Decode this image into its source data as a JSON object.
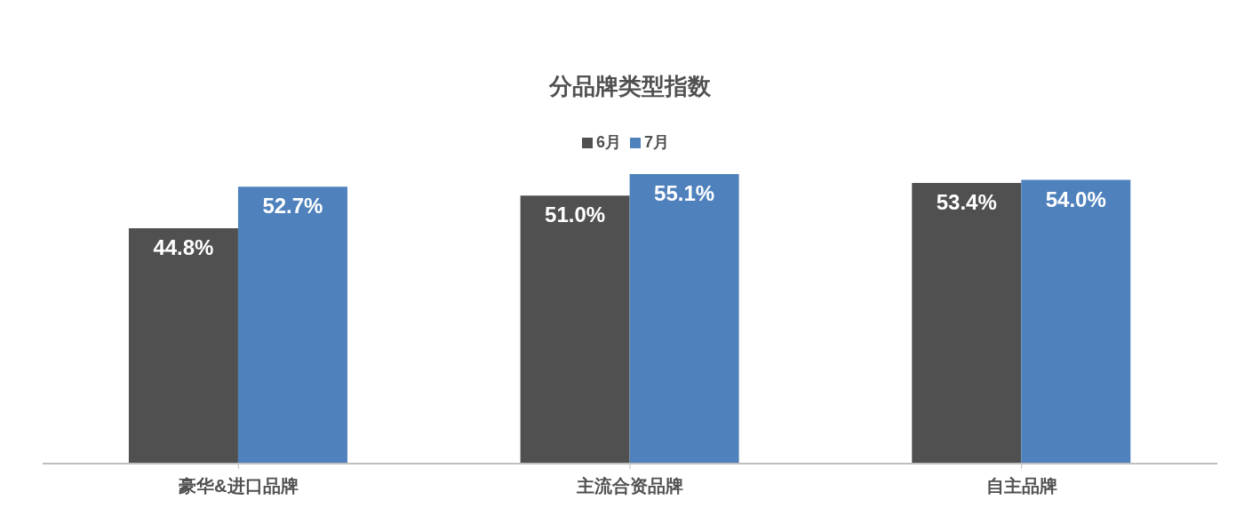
{
  "chart_data": {
    "type": "bar",
    "title": "分品牌类型指数",
    "categories": [
      "豪华&进口品牌",
      "主流合资品牌",
      "自主品牌"
    ],
    "series": [
      {
        "name": "6月",
        "color": "#505050",
        "values": [
          44.8,
          51.0,
          53.4
        ],
        "value_labels": [
          "44.8%",
          "51.0%",
          "53.4%"
        ]
      },
      {
        "name": "7月",
        "color": "#4f81bd",
        "values": [
          52.7,
          55.1,
          54.0
        ],
        "value_labels": [
          "52.7%",
          "55.1%",
          "54.0%"
        ]
      }
    ],
    "legend": "top"
  }
}
